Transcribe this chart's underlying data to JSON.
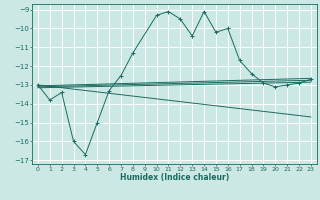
{
  "xlabel": "Humidex (Indice chaleur)",
  "bg_color": "#cce8e4",
  "grid_color": "#b0d8d2",
  "line_color": "#1a6b60",
  "xlim": [
    -0.5,
    23.5
  ],
  "ylim": [
    -17.2,
    -8.7
  ],
  "yticks": [
    -17,
    -16,
    -15,
    -14,
    -13,
    -12,
    -11,
    -10,
    -9
  ],
  "xticks": [
    0,
    1,
    2,
    3,
    4,
    5,
    6,
    7,
    8,
    9,
    10,
    11,
    12,
    13,
    14,
    15,
    16,
    17,
    18,
    19,
    20,
    21,
    22,
    23
  ],
  "series1_x": [
    0,
    1,
    2,
    3,
    4,
    5,
    6,
    7,
    8,
    10,
    11,
    12,
    13,
    14,
    15,
    16,
    17,
    18,
    19,
    20,
    21,
    22,
    23
  ],
  "series1_y": [
    -13.0,
    -13.8,
    -13.4,
    -16.0,
    -16.7,
    -15.0,
    -13.3,
    -12.5,
    -11.3,
    -9.3,
    -9.1,
    -9.5,
    -10.4,
    -9.1,
    -10.2,
    -10.0,
    -11.7,
    -12.4,
    -12.9,
    -13.1,
    -13.0,
    -12.9,
    -12.7
  ],
  "series2_x": [
    0,
    23
  ],
  "series2_y": [
    -13.05,
    -12.65
  ],
  "series3_x": [
    0,
    23
  ],
  "series3_y": [
    -13.1,
    -12.75
  ],
  "series4_x": [
    0,
    23
  ],
  "series4_y": [
    -13.15,
    -12.85
  ],
  "series5_x": [
    0,
    23
  ],
  "series5_y": [
    -13.0,
    -14.7
  ]
}
